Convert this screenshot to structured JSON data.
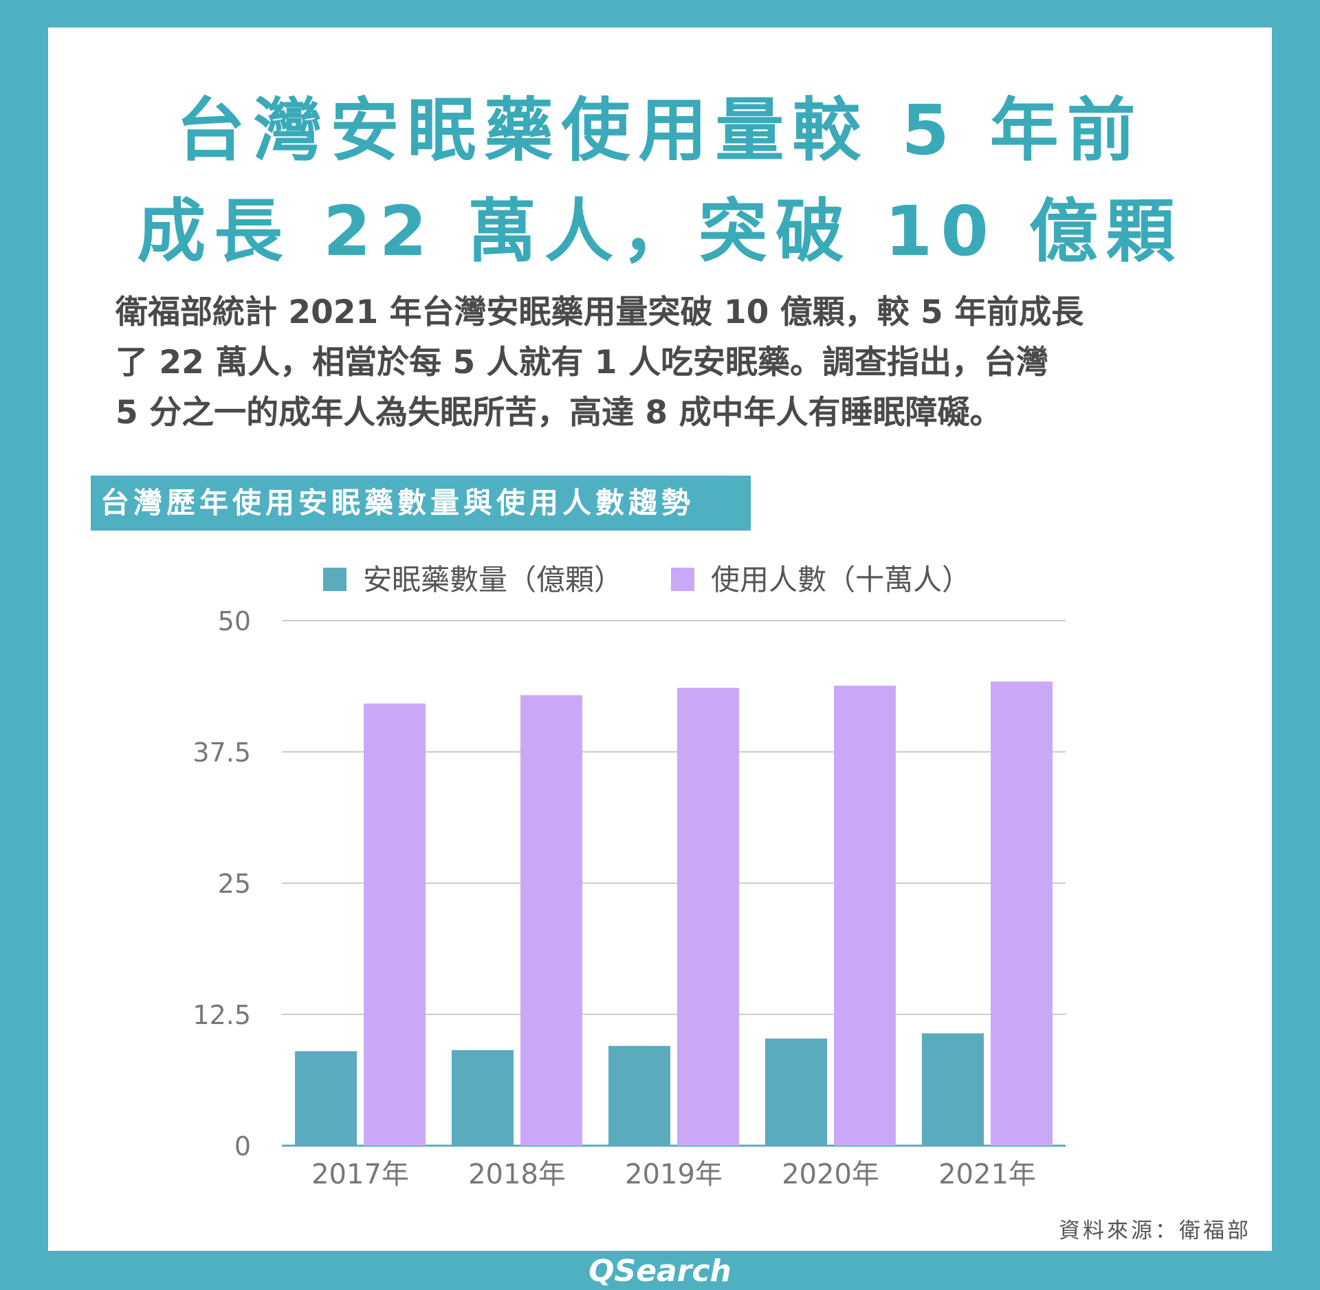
{
  "headline": {
    "line1": "台灣安眠藥使用量較 5 年前",
    "line2": "成長 22 萬人，突破 10 億顆"
  },
  "summary": {
    "line1": "衛福部統計 2021 年台灣安眠藥用量突破 10 億顆，較 5 年前成長",
    "line2": "了 22 萬人，相當於每 5 人就有 1 人吃安眠藥。調查指出，台灣",
    "line3": "5 分之一的成年人為失眠所苦，高達 8 成中年人有睡眠障礙。"
  },
  "source": "資料來源：衛福部",
  "brand": "QSearch",
  "colors": {
    "frame": "#4fb0c2",
    "headline": "#3aaab9",
    "series_pills": "#5aabbd",
    "series_people": "#c9a9f7"
  },
  "chart_data": {
    "type": "bar",
    "title": "台灣歷年使用安眠藥數量與使用人數趨勢",
    "categories": [
      "2017年",
      "2018年",
      "2019年",
      "2020年",
      "2021年"
    ],
    "series": [
      {
        "name": "安眠藥數量（億顆）",
        "color": "#5aabbd",
        "values": [
          9.0,
          9.1,
          9.5,
          10.2,
          10.7
        ]
      },
      {
        "name": "使用人數（十萬人）",
        "color": "#c9a9f7",
        "values": [
          42.1,
          42.9,
          43.6,
          43.8,
          44.2
        ]
      }
    ],
    "ylim": [
      0,
      50
    ],
    "yticks": [
      "0",
      "12.5",
      "25",
      "37.5",
      "50"
    ],
    "ytick_values": [
      0,
      12.5,
      25,
      37.5,
      50
    ],
    "grid": true,
    "legend_position": "top",
    "xlabel": "",
    "ylabel": ""
  }
}
